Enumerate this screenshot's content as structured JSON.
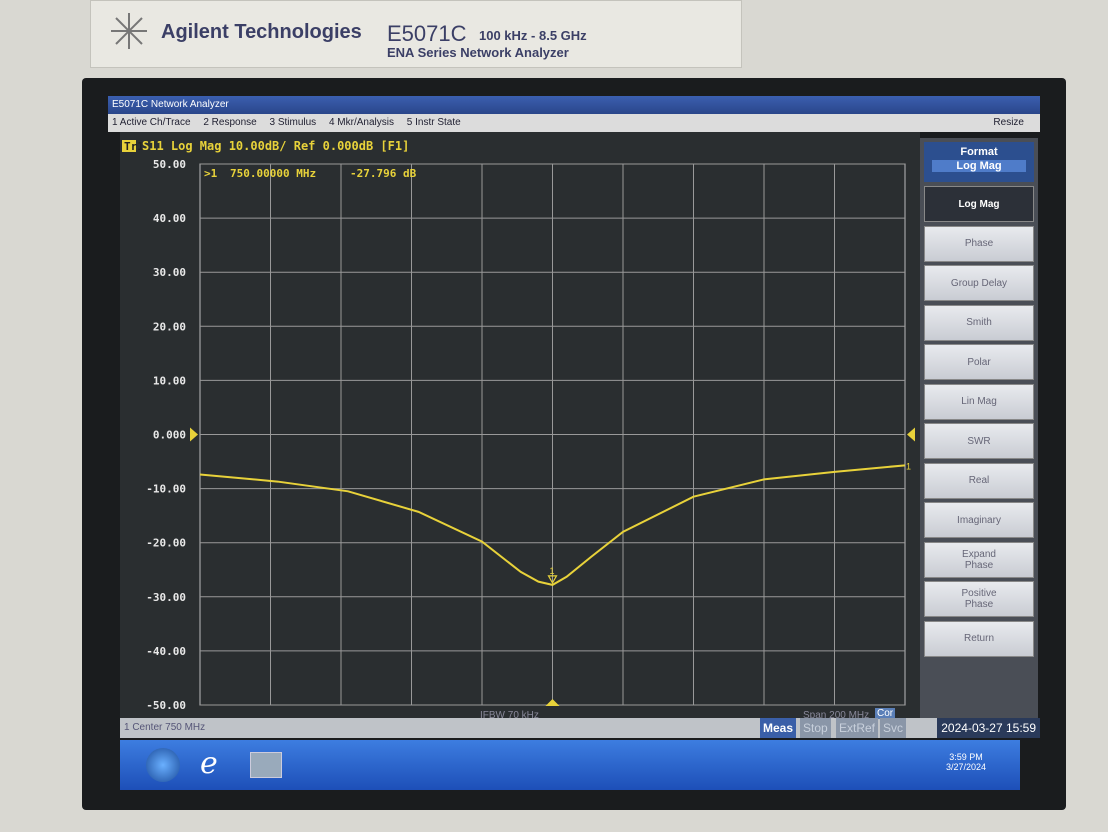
{
  "header": {
    "brand": "Agilent Technologies",
    "model": "E5071C",
    "range": "100 kHz - 8.5 GHz",
    "series": "ENA Series Network Analyzer"
  },
  "window": {
    "title": "E5071C Network Analyzer",
    "menu": [
      "1 Active Ch/Trace",
      "2 Response",
      "3 Stimulus",
      "4 Mkr/Analysis",
      "5 Instr State"
    ],
    "resize": "Resize"
  },
  "chart_data": {
    "type": "line",
    "trace_tag": "Tr1",
    "title": "S11 Log Mag 10.00dB/ Ref 0.000dB [F1]",
    "x": [
      650,
      672,
      692,
      712,
      730,
      741,
      746,
      750,
      754,
      761,
      770,
      790,
      810,
      830,
      850
    ],
    "xlim": [
      650,
      850
    ],
    "ylim": [
      -50,
      50
    ],
    "yticks": [
      {
        "value": 50,
        "label": "50.00"
      },
      {
        "value": 40,
        "label": "40.00"
      },
      {
        "value": 30,
        "label": "30.00"
      },
      {
        "value": 20,
        "label": "20.00"
      },
      {
        "value": 10,
        "label": "10.00"
      },
      {
        "value": 0,
        "label": "0.000"
      },
      {
        "value": -10,
        "label": "-10.00"
      },
      {
        "value": -20,
        "label": "-20.00"
      },
      {
        "value": -30,
        "label": "-30.00"
      },
      {
        "value": -40,
        "label": "-40.00"
      },
      {
        "value": -50,
        "label": "-50.00"
      }
    ],
    "grid": true,
    "series": [
      {
        "name": "S11",
        "color": "#e8d23a",
        "values": [
          -7.4,
          -8.7,
          -10.5,
          -14.3,
          -19.8,
          -25.4,
          -27.2,
          -27.8,
          -26.3,
          -22.6,
          -18,
          -11.5,
          -8.3,
          -6.9,
          -5.7
        ]
      }
    ],
    "marker": {
      "label": ">1",
      "x": 750,
      "x_label": "750.00000 MHz",
      "value": -27.796,
      "value_label": "-27.796 dB",
      "tag": "1"
    },
    "trace_end_tag": "1"
  },
  "softkeys": {
    "title": "Format",
    "current": "Log Mag",
    "buttons": [
      "Log Mag",
      "Phase",
      "Group Delay",
      "Smith",
      "Polar",
      "Lin Mag",
      "SWR",
      "Real",
      "Imaginary",
      "Expand\nPhase",
      "Positive\nPhase",
      "Return"
    ]
  },
  "status": {
    "center": "1  Center 750 MHz",
    "ifbw": "IFBW 70 kHz",
    "span": "Span 200 MHz",
    "cor": "Cor",
    "flags": [
      "Meas",
      "Stop",
      "ExtRef",
      "Svc"
    ],
    "datetime": "2024-03-27 15:59"
  },
  "taskbar": {
    "time": "3:59 PM",
    "date": "3/27/2024"
  }
}
